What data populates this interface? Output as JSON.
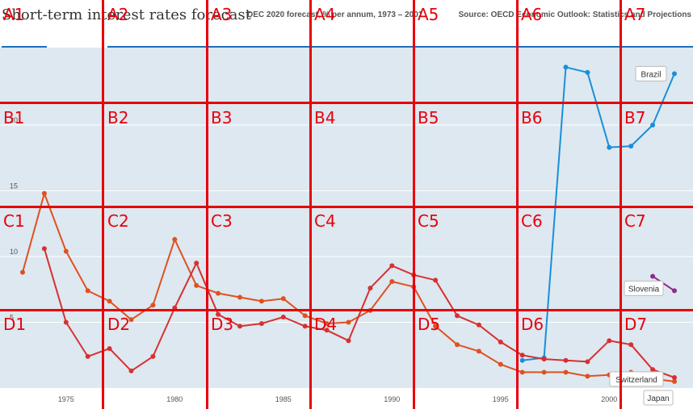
{
  "header": {
    "title": "Short-term interest rates forecast",
    "subtitle": "DEC 2020 forecast, % per annum, 1973 – 2001",
    "source": "Source: OECD Economic Outlook: Statistics and Projections"
  },
  "colors": {
    "plot_bg": "#dde8f0",
    "accent_rule": "#1e6fb8",
    "grid_overlay": "#e8000b"
  },
  "chart_data": {
    "type": "line",
    "title": "Short-term interest rates forecast",
    "xlim": [
      1972.5,
      2002.5
    ],
    "ylim": [
      0,
      26
    ],
    "x_ticks": [
      1975,
      1980,
      1985,
      1990,
      1995,
      2000
    ],
    "y_ticks": [
      5,
      10,
      15,
      20
    ],
    "series": [
      {
        "name": "Brazil",
        "color": "#1a8fd9",
        "points": [
          [
            1996,
            2.1
          ],
          [
            1997,
            2.3
          ],
          [
            1998,
            24.4
          ],
          [
            1999,
            24.0
          ],
          [
            2000,
            18.3
          ],
          [
            2001,
            18.4
          ],
          [
            2002,
            20.0
          ],
          [
            2003,
            23.9
          ]
        ]
      },
      {
        "name": "Slovenia",
        "color": "#8f2a8a",
        "points": [
          [
            2002,
            8.5
          ],
          [
            2003,
            7.4
          ]
        ]
      },
      {
        "name": "Switzerland",
        "color": "#e05020",
        "points": [
          [
            1973,
            8.8
          ],
          [
            1974,
            14.8
          ],
          [
            1975,
            10.4
          ],
          [
            1976,
            7.4
          ],
          [
            1977,
            6.6
          ],
          [
            1978,
            5.2
          ],
          [
            1979,
            6.3
          ],
          [
            1980,
            11.3
          ],
          [
            1981,
            7.8
          ],
          [
            1982,
            7.2
          ],
          [
            1983,
            6.9
          ],
          [
            1984,
            6.6
          ],
          [
            1985,
            6.8
          ],
          [
            1986,
            5.5
          ],
          [
            1987,
            4.9
          ],
          [
            1988,
            5.0
          ],
          [
            1989,
            5.9
          ],
          [
            1990,
            8.1
          ],
          [
            1991,
            7.7
          ],
          [
            1992,
            4.7
          ],
          [
            1993,
            3.3
          ],
          [
            1994,
            2.8
          ],
          [
            1995,
            1.8
          ],
          [
            1996,
            1.2
          ],
          [
            1997,
            1.2
          ],
          [
            1998,
            1.2
          ],
          [
            1999,
            0.9
          ],
          [
            2000,
            1.0
          ],
          [
            2001,
            1.2
          ],
          [
            2002,
            0.7
          ],
          [
            2003,
            0.5
          ]
        ]
      },
      {
        "name": "Japan",
        "color": "#d83030",
        "points": [
          [
            1974,
            10.6
          ],
          [
            1975,
            5.0
          ],
          [
            1976,
            2.4
          ],
          [
            1977,
            3.0
          ],
          [
            1978,
            1.3
          ],
          [
            1979,
            2.4
          ],
          [
            1980,
            6.1
          ],
          [
            1981,
            9.5
          ],
          [
            1982,
            5.6
          ],
          [
            1983,
            4.7
          ],
          [
            1984,
            4.9
          ],
          [
            1985,
            5.4
          ],
          [
            1986,
            4.7
          ],
          [
            1987,
            4.4
          ],
          [
            1988,
            3.6
          ],
          [
            1989,
            7.6
          ],
          [
            1990,
            9.3
          ],
          [
            1991,
            8.6
          ],
          [
            1992,
            8.2
          ],
          [
            1993,
            5.5
          ],
          [
            1994,
            4.8
          ],
          [
            1995,
            3.5
          ],
          [
            1996,
            2.5
          ],
          [
            1997,
            2.2
          ],
          [
            1998,
            2.1
          ],
          [
            1999,
            2.0
          ],
          [
            2000,
            3.6
          ],
          [
            2001,
            3.3
          ],
          [
            2002,
            1.4
          ],
          [
            2003,
            0.8
          ]
        ]
      }
    ],
    "end_labels": [
      "Brazil",
      "Slovenia",
      "Switzerland",
      "Japan"
    ]
  },
  "grid_overlay": {
    "cells": [
      "A1",
      "A2",
      "A3",
      "A4",
      "A5",
      "A6",
      "A7",
      "B1",
      "B2",
      "B3",
      "B4",
      "B5",
      "B6",
      "B7",
      "C1",
      "C2",
      "C3",
      "C4",
      "C5",
      "C6",
      "C7",
      "D1",
      "D2",
      "D3",
      "D4",
      "D5",
      "D6",
      "D7"
    ]
  }
}
